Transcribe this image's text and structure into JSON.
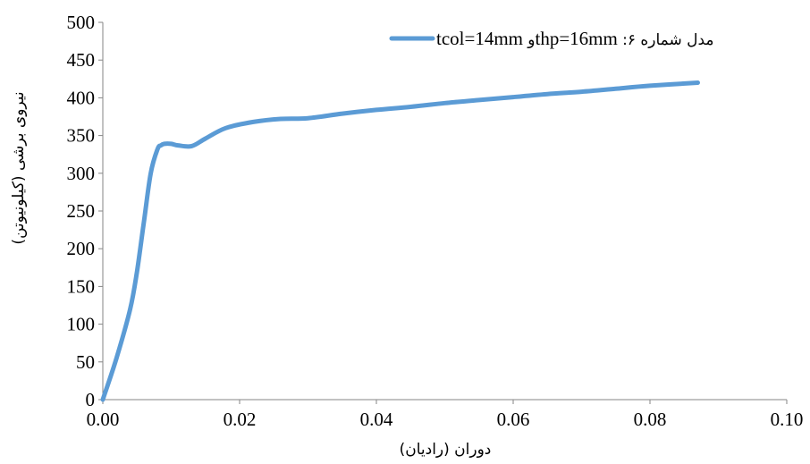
{
  "chart_data": {
    "type": "line",
    "xlabel": "دوران (رادیان)",
    "ylabel": "نیروی برشی (کیلونیوتن)",
    "xlim": [
      0,
      0.1
    ],
    "ylim": [
      0,
      500
    ],
    "x_ticks": [
      "0.00",
      "0.02",
      "0.04",
      "0.06",
      "0.08",
      "0.10"
    ],
    "y_ticks": [
      "0",
      "50",
      "100",
      "150",
      "200",
      "250",
      "300",
      "350",
      "400",
      "450",
      "500"
    ],
    "grid": false,
    "legend_position": "top-right",
    "series": [
      {
        "name": "مدل شماره ۶: thp=16mm و tcol=14mm",
        "color": "#5b9bd5",
        "x": [
          0,
          0.002,
          0.004,
          0.005,
          0.006,
          0.007,
          0.008,
          0.0085,
          0.009,
          0.01,
          0.011,
          0.013,
          0.015,
          0.018,
          0.022,
          0.026,
          0.03,
          0.035,
          0.04,
          0.045,
          0.05,
          0.055,
          0.06,
          0.065,
          0.07,
          0.075,
          0.08,
          0.087
        ],
        "y": [
          0,
          55,
          120,
          170,
          235,
          300,
          332,
          337,
          339,
          339,
          337,
          336,
          346,
          360,
          368,
          372,
          373,
          379,
          384,
          388,
          393,
          397,
          401,
          405,
          408,
          412,
          416,
          420
        ]
      }
    ]
  }
}
